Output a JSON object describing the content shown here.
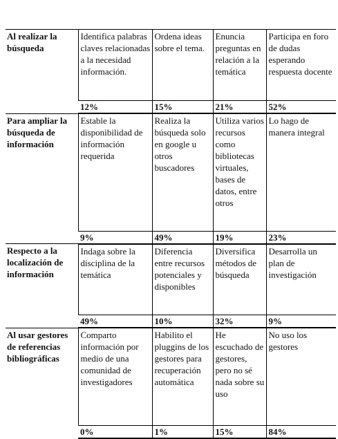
{
  "table": {
    "sections": [
      {
        "label": "Al realizar la búsqueda",
        "items": [
          "Identifica palabras claves relacionadas a la necesidad información.",
          "Ordena ideas sobre el tema.",
          "Enuncia preguntas en relación a la temática",
          "Participa en foro de dudas esperando respuesta docente"
        ],
        "percents": [
          "12%",
          "15%",
          "21%",
          "52%"
        ]
      },
      {
        "label": "Para ampliar la búsqueda de información",
        "items": [
          "Estable la disponibilidad de información requerida",
          "Realiza la búsqueda solo en google u otros buscadores",
          "Utiliza varios recursos como bibliotecas virtuales, bases de datos, entre otros",
          "Lo hago de manera integral"
        ],
        "percents": [
          "9%",
          "49%",
          "19%",
          "23%"
        ]
      },
      {
        "label": "Respecto a la localización de información",
        "items": [
          "Indaga sobre la disciplina de la temática",
          "Diferencia entre recursos potenciales y disponibles",
          "Diversifica métodos de búsqueda",
          "Desarrolla un plan de investigación"
        ],
        "percents": [
          "49%",
          "10%",
          "32%",
          "9%"
        ]
      },
      {
        "label": "Al usar gestores de referencias bibliográficas",
        "items": [
          "Comparto información por medio de una comunidad de investigadores",
          "Habilito el pluggins de los gestores para recuperación automática",
          "He escuchado de gestores, pero no sé nada sobre su uso",
          "No uso los gestores"
        ],
        "percents": [
          "0%",
          "1%",
          "15%",
          "84%"
        ]
      }
    ]
  }
}
